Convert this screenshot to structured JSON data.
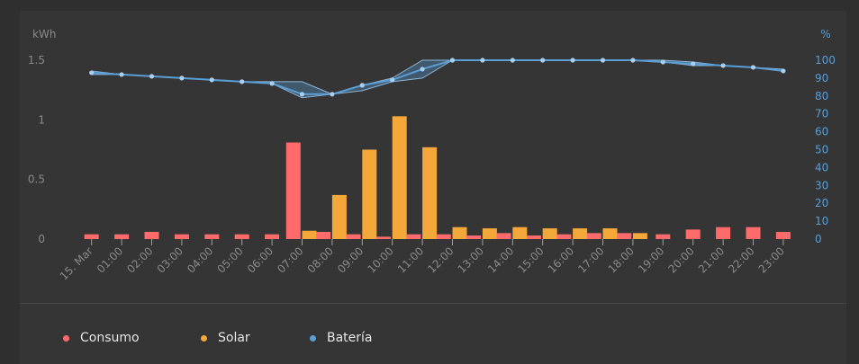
{
  "chart_data": {
    "type": "bar",
    "y_left_label": "kWh",
    "y_right_label": "%",
    "y_left_ticks": [
      "0",
      "0.5",
      "1",
      "1.5"
    ],
    "y_left_lim": [
      0,
      1.5
    ],
    "y_right_ticks": [
      "0",
      "10",
      "20",
      "30",
      "40",
      "50",
      "60",
      "70",
      "80",
      "90",
      "100"
    ],
    "y_right_lim": [
      0,
      100
    ],
    "categories": [
      "15. Mar",
      "01:00",
      "02:00",
      "03:00",
      "04:00",
      "05:00",
      "06:00",
      "07:00",
      "08:00",
      "09:00",
      "10:00",
      "11:00",
      "12:00",
      "13:00",
      "14:00",
      "15:00",
      "16:00",
      "17:00",
      "18:00",
      "19:00",
      "20:00",
      "21:00",
      "22:00",
      "23:00"
    ],
    "series": [
      {
        "name": "Consumo",
        "color": "#ff6b6b",
        "values": [
          0.04,
          0.04,
          0.06,
          0.04,
          0.04,
          0.04,
          0.04,
          0.81,
          0.06,
          0.04,
          0.02,
          0.04,
          0.04,
          0.03,
          0.05,
          0.03,
          0.04,
          0.05,
          0.05,
          0.04,
          0.08,
          0.1,
          0.1,
          0.06
        ]
      },
      {
        "name": "Solar",
        "color": "#f5a83a",
        "values": [
          0,
          0,
          0,
          0,
          0,
          0,
          0,
          0.07,
          0.37,
          0.75,
          1.03,
          0.77,
          0.1,
          0.09,
          0.1,
          0.09,
          0.09,
          0.09,
          0.05,
          0,
          0,
          0,
          0,
          0
        ]
      },
      {
        "name": "Batería",
        "color": "#5a9ed6",
        "axis": "right",
        "x": [
          0,
          1,
          2,
          3,
          4,
          5,
          6,
          7,
          8,
          9,
          10,
          11,
          12,
          13,
          14,
          15,
          16,
          17,
          18,
          19,
          20,
          21,
          22,
          23
        ],
        "values": [
          93,
          92,
          91,
          90,
          89,
          88,
          87,
          81,
          81,
          86,
          89,
          95,
          100,
          100,
          100,
          100,
          100,
          100,
          100,
          99,
          98,
          97,
          96,
          94
        ],
        "min": [
          92,
          92,
          91,
          90,
          89,
          88,
          87,
          79,
          81,
          83,
          88,
          90,
          100,
          100,
          100,
          100,
          100,
          100,
          100,
          99,
          97,
          97,
          96,
          94
        ],
        "max": [
          94,
          92,
          91,
          90,
          89,
          88,
          88,
          88,
          81,
          86,
          90,
          100,
          100,
          100,
          100,
          100,
          100,
          100,
          100,
          100,
          99,
          97,
          96,
          95
        ]
      }
    ]
  },
  "colors": {
    "consumo": "#ff6b6b",
    "solar": "#f5a83a",
    "bateria": "#5a9ed6",
    "axis_text": "#8a8a8a",
    "axis_text_right": "#5a9ed6"
  },
  "legend": {
    "consumo": "Consumo",
    "solar": "Solar",
    "bateria": "Batería"
  }
}
